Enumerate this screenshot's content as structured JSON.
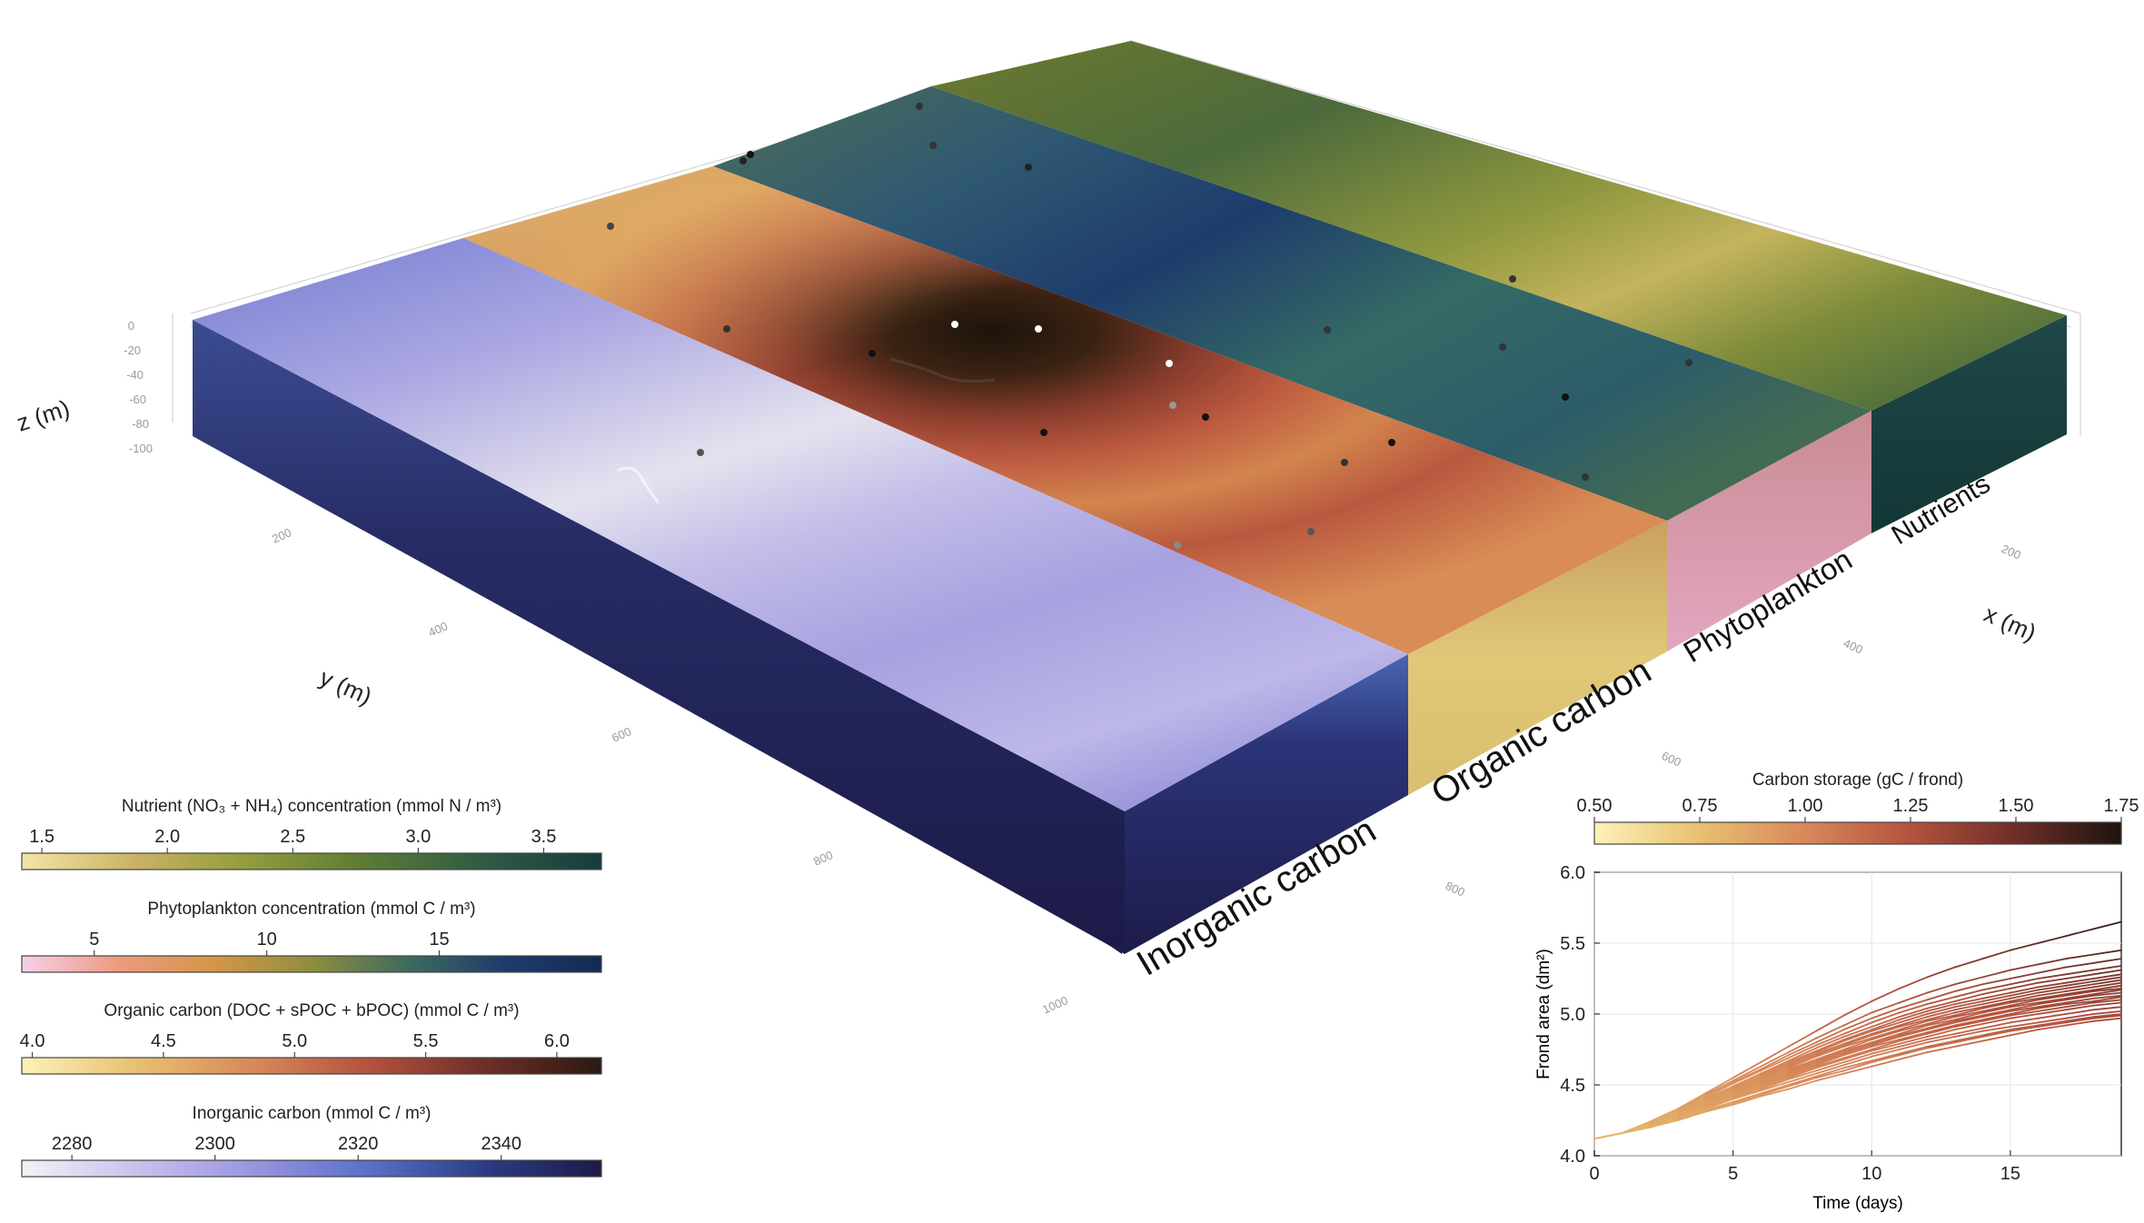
{
  "scene3d": {
    "z_label": "z (m)",
    "y_label": "y (m)",
    "x_label": "x (m)",
    "z_ticks": [
      "0",
      "-20",
      "-40",
      "-60",
      "-80",
      "-100"
    ],
    "y_ticks": [
      "200",
      "400",
      "600",
      "800",
      "1000"
    ],
    "x_ticks_near": [
      "800",
      "600"
    ],
    "x_ticks_far": [
      "400",
      "200"
    ],
    "slab_labels": [
      "Inorganic carbon",
      "Organic carbon",
      "Phytoplankton",
      "Nutrients"
    ]
  },
  "colorbars": [
    {
      "title": "Nutrient (NO₃ + NH₄) concentration (mmol N / m³)",
      "ticks": [
        "1.5",
        "2.0",
        "2.5",
        "3.0",
        "3.5"
      ],
      "tick_values": [
        1.5,
        2.0,
        2.5,
        3.0,
        3.5
      ],
      "range": [
        1.42,
        3.73
      ],
      "colors": [
        "#f4e4a6",
        "#c8b262",
        "#8f9a3c",
        "#5a7a35",
        "#2f5a45",
        "#163c3c"
      ]
    },
    {
      "title": "Phytoplankton concentration (mmol C / m³)",
      "ticks": [
        "5",
        "10",
        "15"
      ],
      "tick_values": [
        5,
        10,
        15
      ],
      "range": [
        2.9,
        19.7
      ],
      "colors": [
        "#f5d0ea",
        "#ee9a7e",
        "#d49648",
        "#8e8e3e",
        "#3e6a5e",
        "#1d3c6c",
        "#142a52"
      ]
    },
    {
      "title": "Organic carbon (DOC + sPOC + bPOC) (mmol C / m³)",
      "ticks": [
        "4.0",
        "4.5",
        "5.0",
        "5.5",
        "6.0"
      ],
      "tick_values": [
        4.0,
        4.5,
        5.0,
        5.5,
        6.0
      ],
      "range": [
        3.96,
        6.17
      ],
      "colors": [
        "#fcf2b8",
        "#e8c070",
        "#d8885a",
        "#b4523e",
        "#6e2e28",
        "#2a1a12"
      ]
    },
    {
      "title": "Inorganic carbon (mmol C / m³)",
      "ticks": [
        "2280",
        "2300",
        "2320",
        "2340"
      ],
      "tick_values": [
        2280,
        2300,
        2320,
        2340
      ],
      "range": [
        2273,
        2354
      ],
      "colors": [
        "#f3f2f7",
        "#c6c2ec",
        "#9a94e0",
        "#5870c8",
        "#2c3c84",
        "#1c1a48"
      ]
    }
  ],
  "carbon_storage_colorbar": {
    "title": "Carbon storage (gC / frond)",
    "ticks": [
      "0.50",
      "0.75",
      "1.00",
      "1.25",
      "1.50",
      "1.75"
    ],
    "tick_values": [
      0.5,
      0.75,
      1.0,
      1.25,
      1.5,
      1.75
    ],
    "range": [
      0.5,
      1.75
    ],
    "colors": [
      "#fcf2b8",
      "#e8c070",
      "#d8885a",
      "#b4523e",
      "#6e2e28",
      "#1e140e"
    ]
  },
  "chart_data": {
    "type": "line",
    "xlabel": "Time (days)",
    "ylabel": "Frond area (dm²)",
    "xlim": [
      0,
      19
    ],
    "ylim": [
      4.0,
      6.0
    ],
    "x_ticks": [
      "0",
      "5",
      "10",
      "15"
    ],
    "x_tick_values": [
      0,
      5,
      10,
      15
    ],
    "y_ticks": [
      "4.0",
      "4.5",
      "5.0",
      "5.5",
      "6.0"
    ],
    "y_tick_values": [
      4.0,
      4.5,
      5.0,
      5.5,
      6.0
    ],
    "grid": true,
    "x": [
      0,
      1,
      2,
      3,
      4,
      5,
      6,
      7,
      8,
      9,
      10,
      11,
      12,
      13,
      14,
      15,
      16,
      17,
      18,
      19
    ],
    "series": [
      {
        "values": [
          4.12,
          4.16,
          4.24,
          4.33,
          4.44,
          4.55,
          4.66,
          4.77,
          4.88,
          4.99,
          5.09,
          5.18,
          5.26,
          5.33,
          5.39,
          5.45,
          5.5,
          5.55,
          5.6,
          5.65
        ]
      },
      {
        "values": [
          4.12,
          4.16,
          4.24,
          4.33,
          4.43,
          4.53,
          4.63,
          4.73,
          4.83,
          4.92,
          5.01,
          5.08,
          5.15,
          5.21,
          5.26,
          5.31,
          5.35,
          5.39,
          5.42,
          5.45
        ]
      },
      {
        "values": [
          4.12,
          4.16,
          4.24,
          4.32,
          4.42,
          4.52,
          4.61,
          4.71,
          4.8,
          4.89,
          4.97,
          5.04,
          5.1,
          5.16,
          5.21,
          5.25,
          5.29,
          5.33,
          5.36,
          5.39
        ]
      },
      {
        "values": [
          4.12,
          4.16,
          4.23,
          4.32,
          4.41,
          4.51,
          4.6,
          4.69,
          4.78,
          4.86,
          4.94,
          5.01,
          5.07,
          5.12,
          5.17,
          5.21,
          5.25,
          5.28,
          5.31,
          5.34
        ]
      },
      {
        "values": [
          4.12,
          4.16,
          4.23,
          4.31,
          4.4,
          4.49,
          4.58,
          4.67,
          4.76,
          4.84,
          4.91,
          4.98,
          5.04,
          5.09,
          5.14,
          5.18,
          5.22,
          5.25,
          5.28,
          5.31
        ]
      },
      {
        "values": [
          4.12,
          4.16,
          4.23,
          4.31,
          4.4,
          4.49,
          4.58,
          4.66,
          4.74,
          4.82,
          4.89,
          4.96,
          5.02,
          5.07,
          5.11,
          5.15,
          5.19,
          5.22,
          5.25,
          5.28
        ]
      },
      {
        "values": [
          4.12,
          4.16,
          4.23,
          4.31,
          4.39,
          4.48,
          4.57,
          4.65,
          4.73,
          4.81,
          4.88,
          4.94,
          5.0,
          5.05,
          5.09,
          5.13,
          5.17,
          5.2,
          5.23,
          5.26
        ]
      },
      {
        "values": [
          4.12,
          4.16,
          4.22,
          4.3,
          4.39,
          4.47,
          4.56,
          4.64,
          4.72,
          4.79,
          4.86,
          4.92,
          4.98,
          5.03,
          5.07,
          5.11,
          5.15,
          5.18,
          5.21,
          5.24
        ]
      },
      {
        "values": [
          4.12,
          4.16,
          4.22,
          4.3,
          4.38,
          4.47,
          4.55,
          4.63,
          4.71,
          4.78,
          4.85,
          4.91,
          4.96,
          5.01,
          5.05,
          5.09,
          5.13,
          5.16,
          5.19,
          5.22
        ]
      },
      {
        "values": [
          4.12,
          4.16,
          4.22,
          4.3,
          4.38,
          4.46,
          4.54,
          4.62,
          4.7,
          4.77,
          4.83,
          4.89,
          4.95,
          4.99,
          5.04,
          5.08,
          5.11,
          5.14,
          5.17,
          5.2
        ]
      },
      {
        "values": [
          4.12,
          4.16,
          4.22,
          4.29,
          4.37,
          4.45,
          4.53,
          4.61,
          4.68,
          4.75,
          4.82,
          4.88,
          4.93,
          4.98,
          5.02,
          5.06,
          5.1,
          5.13,
          5.16,
          5.18
        ]
      },
      {
        "values": [
          4.12,
          4.16,
          4.22,
          4.29,
          4.37,
          4.45,
          4.52,
          4.6,
          4.67,
          4.74,
          4.8,
          4.86,
          4.92,
          4.96,
          5.01,
          5.05,
          5.08,
          5.11,
          5.14,
          5.17
        ]
      },
      {
        "values": [
          4.12,
          4.16,
          4.22,
          4.29,
          4.36,
          4.44,
          4.51,
          4.59,
          4.66,
          4.73,
          4.79,
          4.85,
          4.9,
          4.95,
          4.99,
          5.03,
          5.07,
          5.1,
          5.13,
          5.15
        ]
      },
      {
        "values": [
          4.12,
          4.16,
          4.21,
          4.28,
          4.36,
          4.43,
          4.51,
          4.58,
          4.65,
          4.72,
          4.78,
          4.84,
          4.89,
          4.94,
          4.98,
          5.02,
          5.05,
          5.08,
          5.11,
          5.13
        ]
      },
      {
        "values": [
          4.12,
          4.16,
          4.21,
          4.28,
          4.35,
          4.43,
          4.5,
          4.57,
          4.64,
          4.71,
          4.77,
          4.82,
          4.87,
          4.92,
          4.96,
          5.0,
          5.04,
          5.07,
          5.09,
          5.12
        ]
      },
      {
        "values": [
          4.12,
          4.16,
          4.21,
          4.28,
          4.35,
          4.42,
          4.49,
          4.56,
          4.63,
          4.69,
          4.75,
          4.81,
          4.86,
          4.91,
          4.95,
          4.99,
          5.02,
          5.05,
          5.08,
          5.1
        ]
      },
      {
        "values": [
          4.12,
          4.16,
          4.21,
          4.27,
          4.34,
          4.41,
          4.48,
          4.55,
          4.62,
          4.68,
          4.74,
          4.79,
          4.84,
          4.89,
          4.93,
          4.97,
          5.0,
          5.03,
          5.06,
          5.08
        ]
      },
      {
        "values": [
          4.12,
          4.16,
          4.21,
          4.27,
          4.34,
          4.41,
          4.47,
          4.54,
          4.6,
          4.66,
          4.72,
          4.77,
          4.82,
          4.86,
          4.9,
          4.94,
          4.97,
          5.0,
          5.03,
          5.05
        ]
      },
      {
        "values": [
          4.12,
          4.16,
          4.21,
          4.27,
          4.33,
          4.4,
          4.46,
          4.52,
          4.58,
          4.64,
          4.7,
          4.75,
          4.8,
          4.84,
          4.88,
          4.91,
          4.94,
          4.97,
          5.0,
          5.02
        ]
      },
      {
        "values": [
          4.12,
          4.16,
          4.2,
          4.26,
          4.32,
          4.38,
          4.44,
          4.5,
          4.56,
          4.62,
          4.67,
          4.72,
          4.77,
          4.81,
          4.85,
          4.89,
          4.92,
          4.95,
          4.98,
          5.0
        ]
      },
      {
        "values": [
          4.12,
          4.16,
          4.2,
          4.26,
          4.31,
          4.37,
          4.43,
          4.49,
          4.55,
          4.6,
          4.66,
          4.71,
          4.76,
          4.8,
          4.84,
          4.88,
          4.91,
          4.94,
          4.97,
          4.99
        ]
      },
      {
        "values": [
          4.12,
          4.16,
          4.2,
          4.25,
          4.31,
          4.36,
          4.42,
          4.47,
          4.53,
          4.58,
          4.63,
          4.68,
          4.73,
          4.77,
          4.81,
          4.85,
          4.89,
          4.92,
          4.95,
          4.97
        ]
      }
    ]
  }
}
